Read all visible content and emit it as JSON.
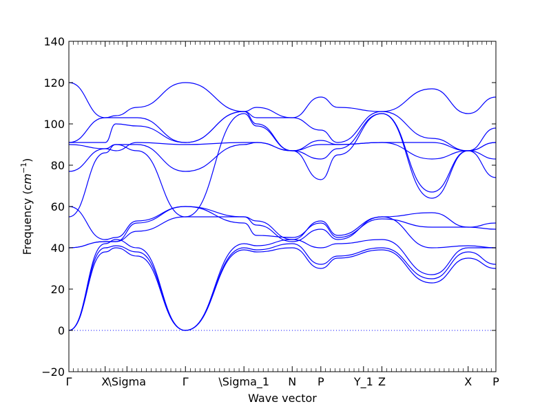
{
  "chart_data": {
    "type": "line",
    "title": "",
    "xlabel": "Wave vector",
    "ylabel": "Frequency ($cm^{-1}$)",
    "ylabel_parts": {
      "text": "Frequency (",
      "unit_base": "cm",
      "unit_sup": "−1",
      "close": ")"
    },
    "ylim": [
      -20,
      140
    ],
    "yticks": [
      -20,
      0,
      20,
      40,
      60,
      80,
      100,
      120,
      140
    ],
    "xlim": [
      0,
      1
    ],
    "xticks": [
      {
        "x": 0.0,
        "label": "Γ"
      },
      {
        "x": 0.085,
        "label": "X"
      },
      {
        "x": 0.136,
        "label": "\\Sigma"
      },
      {
        "x": 0.273,
        "label": "Γ"
      },
      {
        "x": 0.41,
        "label": "\\Sigma_1"
      },
      {
        "x": 0.523,
        "label": "N"
      },
      {
        "x": 0.59,
        "label": "P"
      },
      {
        "x": 0.69,
        "label": "Y_1"
      },
      {
        "x": 0.733,
        "label": "Z"
      },
      {
        "x": 0.935,
        "label": "X"
      },
      {
        "x": 1.0,
        "label": "P"
      }
    ],
    "grid": false,
    "zero_line": {
      "y": 0,
      "style": "dotted",
      "color": "#0000ff"
    },
    "series_color": "#0000ff",
    "x": [
      0.0,
      0.085,
      0.11,
      0.16,
      0.273,
      0.41,
      0.44,
      0.523,
      0.59,
      0.63,
      0.733,
      0.85,
      0.935,
      1.0
    ],
    "series": [
      {
        "values": [
          0,
          38,
          40,
          36,
          0,
          39,
          38,
          40,
          30,
          35,
          39,
          23,
          35,
          30
        ]
      },
      {
        "values": [
          0,
          40,
          41,
          38,
          0,
          40,
          39,
          42,
          32,
          36,
          40,
          25,
          38,
          32
        ]
      },
      {
        "values": [
          0,
          42,
          44,
          40,
          0,
          42,
          41,
          44,
          40,
          42,
          44,
          27,
          40,
          40
        ]
      },
      {
        "values": [
          40,
          43,
          43,
          48,
          55,
          55,
          51,
          43,
          49,
          44,
          55,
          40,
          41,
          40
        ]
      },
      {
        "values": [
          40,
          43,
          43,
          52,
          60,
          52,
          46,
          45,
          52,
          45,
          54,
          50,
          50,
          49
        ]
      },
      {
        "values": [
          60,
          44,
          45,
          53,
          60,
          55,
          53,
          44,
          53,
          46,
          55,
          57,
          50,
          52
        ]
      },
      {
        "values": [
          55,
          86,
          90,
          87,
          55,
          105,
          99,
          87,
          73,
          85,
          105,
          64,
          87,
          74
        ]
      },
      {
        "values": [
          77,
          88,
          90,
          90,
          77,
          90,
          91,
          87,
          83,
          88,
          105,
          67,
          87,
          83
        ]
      },
      {
        "values": [
          90,
          88,
          87,
          91,
          90,
          91,
          91,
          87,
          90,
          90,
          91,
          83,
          87,
          91
        ]
      },
      {
        "values": [
          91,
          91,
          100,
          99,
          91,
          106,
          100,
          87,
          92,
          90,
          91,
          91,
          87,
          91
        ]
      },
      {
        "values": [
          91,
          103,
          103,
          103,
          91,
          106,
          103,
          103,
          97,
          91,
          106,
          93,
          87,
          98
        ]
      },
      {
        "values": [
          120,
          103,
          104,
          108,
          120,
          106,
          108,
          103,
          113,
          108,
          106,
          117,
          105,
          113
        ]
      }
    ]
  }
}
